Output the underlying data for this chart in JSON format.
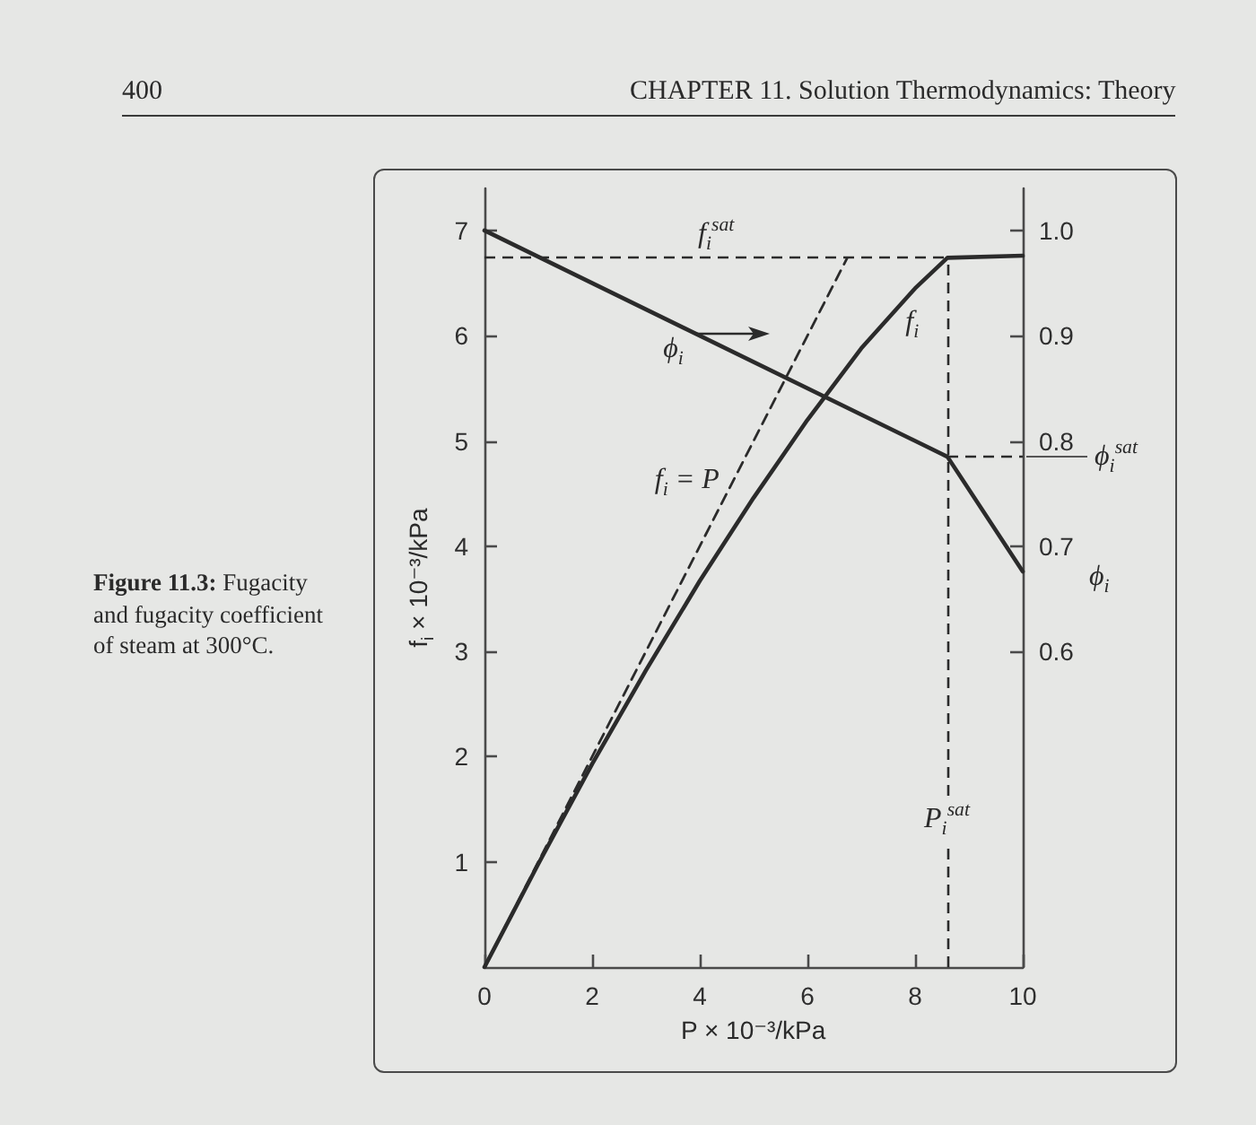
{
  "chart_data": {
    "type": "line",
    "title": "Figure 11.3: Fugacity and fugacity coefficient of steam at 300°C.",
    "xlabel": "P × 10⁻³/kPa",
    "ylabel": "f$_{i}$ × 10⁻³/kPa",
    "y2label": "ϕ$_{i}$",
    "xlim": [
      0,
      10
    ],
    "xticks": [
      0,
      2,
      4,
      6,
      8,
      10
    ],
    "ylim": [
      0,
      7.4
    ],
    "yticks": [
      1,
      2,
      3,
      4,
      5,
      6,
      7
    ],
    "y2lim": [
      0.3,
      1.04
    ],
    "y2ticks": [
      0.6,
      0.7,
      0.8,
      0.9,
      {
        "value": 1,
        "label": "1.0"
      }
    ],
    "series": [
      {
        "name": "f$_{i}$",
        "color": "#2b2b2b",
        "x": [
          0,
          1,
          2,
          3,
          4,
          5,
          6,
          7,
          8,
          8.6,
          10
        ],
        "values": [
          0,
          0.98,
          1.93,
          2.82,
          3.67,
          4.46,
          5.2,
          5.88,
          6.45,
          6.74,
          6.76
        ]
      },
      {
        "name": "ϕ$_{i}$",
        "axis": "y2",
        "color": "#2b2b2b",
        "x": [
          0,
          8.6,
          10
        ],
        "values": [
          1,
          0.785,
          0.676
        ]
      },
      {
        "name": "f$_{i}$ = P",
        "color": "#2b2b2b",
        "line_style": "dashed",
        "x": [
          0,
          6.74
        ],
        "values": [
          0,
          6.74
        ]
      }
    ],
    "ref_lines": [
      {
        "axis": "y",
        "value": 6.74,
        "label": "f$_{i}$$^{sat}$",
        "line_style": "dashed"
      },
      {
        "axis": "x",
        "value": 8.6,
        "label": "P$_{i}$$^{sat}$",
        "line_style": "dashed"
      },
      {
        "axis": "y2",
        "value": 0.785,
        "label": "ϕ$_{i}$$^{sat}$",
        "line_style": "dashed"
      }
    ],
    "annotations": [
      "CHAPTER 11. Solution Thermodynamics: Theory",
      "400"
    ]
  }
}
